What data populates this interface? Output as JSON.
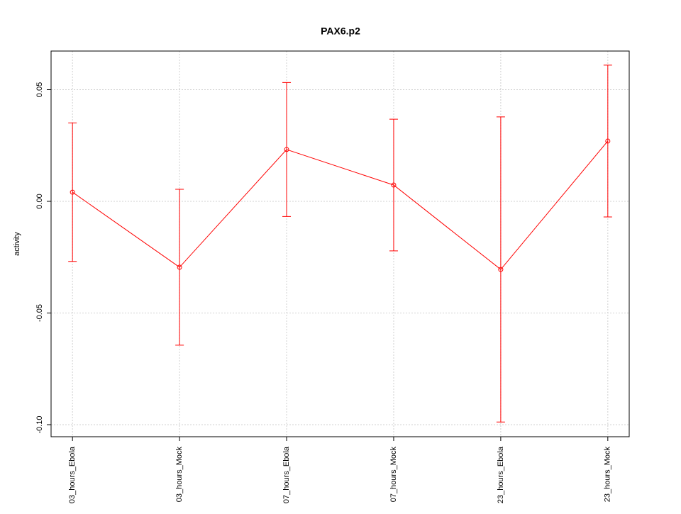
{
  "chart_data": {
    "type": "line",
    "title": "PAX6.p2",
    "y_label": "activity",
    "categories": [
      "03_hours_Ebola",
      "03_hours_Mock",
      "07_hours_Ebola",
      "07_hours_Mock",
      "23_hours_Ebola",
      "23_hours_Mock"
    ],
    "values": [
      0.0041,
      -0.0295,
      0.0232,
      0.0073,
      -0.0305,
      0.027
    ],
    "errors": [
      0.031,
      0.0349,
      0.03,
      0.0295,
      0.0683,
      0.034
    ],
    "color": "#ff0000",
    "ylim": [
      -0.1054,
      0.0673
    ],
    "yticks": [
      {
        "value": -0.1,
        "label": "-0.10"
      },
      {
        "value": -0.05,
        "label": "-0.05"
      },
      {
        "value": 0,
        "label": "0.00"
      },
      {
        "value": 0.05,
        "label": "0.05"
      }
    ],
    "grid": true
  }
}
